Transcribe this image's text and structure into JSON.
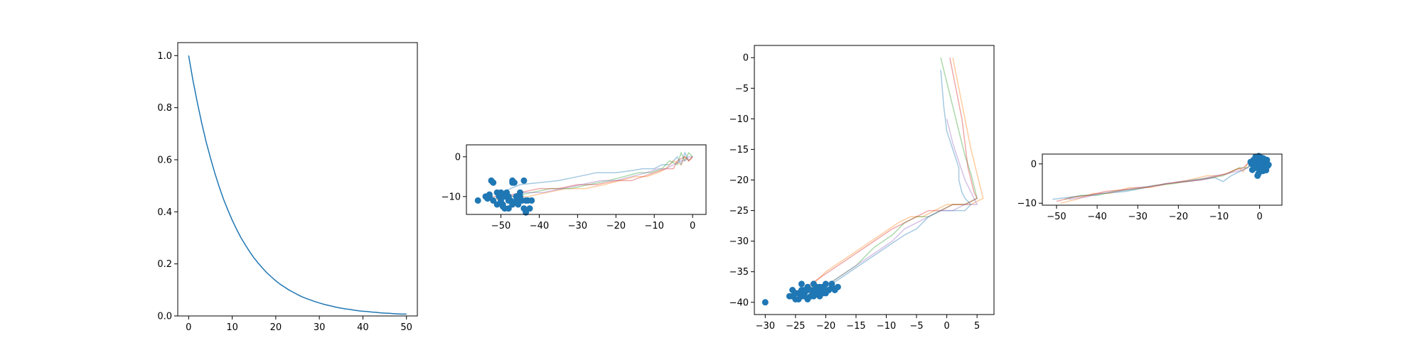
{
  "chart_data": [
    {
      "type": "line",
      "xlim": [
        -2.5,
        52.5
      ],
      "ylim": [
        0,
        1.05
      ],
      "xticks": [
        0,
        10,
        20,
        30,
        40,
        50
      ],
      "yticks": [
        0.0,
        0.2,
        0.4,
        0.6,
        0.8,
        1.0
      ],
      "xtick_labels": [
        "0",
        "10",
        "20",
        "30",
        "40",
        "50"
      ],
      "ytick_labels": [
        "0.0",
        "0.2",
        "0.4",
        "0.6",
        "0.8",
        "1.0"
      ],
      "grid": false,
      "series": [
        {
          "color": "#1f77b4",
          "x": [
            0,
            1,
            2,
            3,
            4,
            5,
            6,
            7,
            8,
            9,
            10,
            11,
            12,
            13,
            14,
            15,
            16,
            17,
            18,
            19,
            20,
            21,
            22,
            23,
            24,
            25,
            26,
            27,
            28,
            29,
            30,
            31,
            32,
            33,
            34,
            35,
            36,
            37,
            38,
            39,
            40,
            41,
            42,
            43,
            44,
            45,
            46,
            47,
            48,
            49,
            50
          ],
          "y": [
            1.0,
            0.905,
            0.819,
            0.741,
            0.67,
            0.607,
            0.549,
            0.497,
            0.449,
            0.407,
            0.368,
            0.333,
            0.301,
            0.273,
            0.247,
            0.223,
            0.202,
            0.183,
            0.165,
            0.15,
            0.135,
            0.122,
            0.111,
            0.1,
            0.091,
            0.082,
            0.074,
            0.067,
            0.061,
            0.055,
            0.05,
            0.045,
            0.041,
            0.037,
            0.033,
            0.03,
            0.027,
            0.025,
            0.022,
            0.02,
            0.018,
            0.017,
            0.015,
            0.014,
            0.012,
            0.011,
            0.01,
            0.009,
            0.008,
            0.007,
            0.007
          ]
        }
      ]
    },
    {
      "type": "line",
      "xlim": [
        -59,
        3.5
      ],
      "ylim": [
        -14.5,
        3
      ],
      "xticks": [
        -50,
        -40,
        -30,
        -20,
        -10,
        0
      ],
      "yticks": [
        -10,
        0
      ],
      "xtick_labels": [
        "−50",
        "−40",
        "−30",
        "−20",
        "−10",
        "0"
      ],
      "ytick_labels": [
        "−10",
        "0"
      ],
      "grid": false,
      "series": [
        {
          "color": "#1f77b4",
          "opacity": 0.4,
          "x": [
            0,
            -1,
            -2,
            -3,
            -4,
            -6,
            -8,
            -10,
            -13,
            -16,
            -20,
            -25,
            -30,
            -35,
            -40,
            -45,
            -50
          ],
          "y": [
            0,
            -1,
            1,
            -2,
            0,
            -2,
            -2,
            -3,
            -3,
            -3.5,
            -4,
            -4,
            -5,
            -6,
            -6.5,
            -7,
            -9
          ]
        },
        {
          "color": "#ff7f0e",
          "opacity": 0.4,
          "x": [
            0,
            -1,
            -2,
            -3,
            -5,
            -7,
            -9,
            -12,
            -15,
            -19,
            -23,
            -28,
            -33,
            -38,
            -43,
            -48,
            -52
          ],
          "y": [
            0,
            -1,
            0,
            -2,
            -1,
            -3,
            -4,
            -5,
            -5,
            -6,
            -7,
            -8,
            -8,
            -9,
            -10,
            -10,
            -11
          ]
        },
        {
          "color": "#2ca02c",
          "opacity": 0.4,
          "x": [
            0,
            -1,
            -2,
            -3,
            -4,
            -6,
            -8,
            -11,
            -14,
            -18,
            -22,
            -27,
            -32,
            -37,
            -42,
            -47,
            -51
          ],
          "y": [
            0,
            1,
            -1,
            1,
            -2,
            -1,
            -3,
            -4,
            -4,
            -5,
            -6,
            -7,
            -8,
            -8,
            -9,
            -10,
            -10
          ]
        },
        {
          "color": "#d62728",
          "opacity": 0.4,
          "x": [
            0,
            -1,
            -2,
            -4,
            -5,
            -7,
            -10,
            -13,
            -16,
            -20,
            -25,
            -30,
            -35,
            -40,
            -45,
            -49,
            -53
          ],
          "y": [
            0,
            -1,
            0,
            -1,
            -3,
            -3,
            -4,
            -5,
            -6,
            -6,
            -7,
            -7,
            -8,
            -8,
            -9,
            -10,
            -10
          ]
        },
        {
          "color": "#9467bd",
          "opacity": 0.4,
          "x": [
            0,
            -1,
            -2,
            -3,
            -5,
            -7,
            -9,
            -12,
            -16,
            -20,
            -24,
            -29,
            -34,
            -39,
            -44,
            -48,
            -50
          ],
          "y": [
            0,
            0,
            -1,
            -1,
            -2,
            -3,
            -3,
            -4,
            -5,
            -6,
            -6,
            -7,
            -8,
            -9,
            -9,
            -10,
            -11
          ]
        }
      ],
      "scatter": {
        "color": "#1f77b4",
        "x": [
          -56,
          -54,
          -53,
          -52.5,
          -52,
          -51,
          -50.5,
          -50,
          -49.5,
          -49,
          -48.5,
          -48,
          -47.5,
          -47,
          -46.5,
          -46,
          -45.5,
          -45,
          -44.5,
          -44,
          -43.5,
          -43,
          -42.5,
          -42,
          -53.5,
          -53,
          -52,
          -51,
          -50,
          -49,
          -48,
          -47,
          -46,
          -45,
          -44,
          -43.5,
          -48,
          -47,
          -49.5,
          -50.5
        ],
        "y": [
          -11,
          -10,
          -9.5,
          -6,
          -6.5,
          -9,
          -10,
          -11,
          -12,
          -13,
          -9,
          -10,
          -11,
          -6,
          -6.5,
          -10,
          -12,
          -9,
          -11,
          -13,
          -14,
          -11,
          -13,
          -11,
          -10.5,
          -10,
          -11,
          -12,
          -9,
          -10,
          -11,
          -12,
          -11,
          -10,
          -6,
          -11,
          -13,
          -6.5,
          -12.5,
          -9.5
        ]
      }
    },
    {
      "type": "line",
      "xlim": [
        -31.8,
        7.8
      ],
      "ylim": [
        -42,
        2
      ],
      "xticks": [
        -30,
        -25,
        -20,
        -15,
        -10,
        -5,
        0,
        5
      ],
      "yticks": [
        -40,
        -35,
        -30,
        -25,
        -20,
        -15,
        -10,
        -5,
        0
      ],
      "xtick_labels": [
        "−30",
        "−25",
        "−20",
        "−15",
        "−10",
        "−5",
        "0",
        "5"
      ],
      "ytick_labels": [
        "−40",
        "−35",
        "−30",
        "−25",
        "−20",
        "−15",
        "−10",
        "−5",
        "0"
      ],
      "grid": false,
      "series": [
        {
          "color": "#1f77b4",
          "opacity": 0.4,
          "x": [
            -1,
            -0.5,
            0,
            1,
            2,
            2,
            2.5,
            3,
            4,
            3,
            1,
            -1,
            -3,
            -5,
            -7,
            -10,
            -13,
            -16,
            -19,
            -22
          ],
          "y": [
            -2,
            -8,
            -12,
            -15,
            -18,
            -20,
            -22,
            -23,
            -24,
            -25,
            -25,
            -25,
            -26,
            -28,
            -29,
            -31,
            -33,
            -35,
            -37,
            -38
          ]
        },
        {
          "color": "#ff7f0e",
          "opacity": 0.4,
          "x": [
            1,
            2,
            3,
            4,
            5,
            5.5,
            6,
            4,
            2,
            0,
            -2,
            -4,
            -6,
            -8,
            -11,
            -14,
            -17,
            -20,
            -23
          ],
          "y": [
            0,
            -5,
            -10,
            -15,
            -19,
            -21,
            -23,
            -24,
            -24,
            -24,
            -25,
            -26,
            -26,
            -27,
            -29,
            -31,
            -33,
            -35,
            -38
          ]
        },
        {
          "color": "#2ca02c",
          "opacity": 0.4,
          "x": [
            -1,
            0,
            1,
            2,
            3,
            4,
            4.5,
            5,
            3,
            1,
            -1,
            -3,
            -5,
            -7,
            -9,
            -12,
            -15,
            -18,
            -21
          ],
          "y": [
            0,
            -4,
            -8,
            -12,
            -16,
            -19,
            -21,
            -23,
            -24,
            -24,
            -25,
            -26,
            -26,
            -27,
            -29,
            -31,
            -34,
            -36,
            -38
          ]
        },
        {
          "color": "#d62728",
          "opacity": 0.4,
          "x": [
            0.5,
            1.5,
            2.5,
            3,
            3.5,
            4,
            4.5,
            5,
            3,
            1,
            -1,
            -3,
            -5,
            -7,
            -9,
            -12,
            -15,
            -18,
            -21,
            -24
          ],
          "y": [
            0,
            -5,
            -10,
            -14,
            -18,
            -20,
            -22,
            -23,
            -24,
            -24,
            -25,
            -25,
            -26,
            -27,
            -28,
            -30,
            -32,
            -34,
            -36,
            -38
          ]
        },
        {
          "color": "#9467bd",
          "opacity": 0.4,
          "x": [
            0,
            1,
            2,
            3,
            4,
            4.5,
            5,
            3,
            1,
            -1,
            -3,
            -5,
            -7,
            -9,
            -12,
            -15,
            -18,
            -21
          ],
          "y": [
            -10,
            -14,
            -17,
            -20,
            -22,
            -23,
            -24,
            -24,
            -25,
            -25,
            -26,
            -27,
            -28,
            -30,
            -32,
            -34,
            -36,
            -38
          ]
        }
      ],
      "scatter": {
        "color": "#1f77b4",
        "x": [
          -30,
          -26,
          -25.5,
          -25,
          -24.5,
          -24,
          -23.5,
          -23,
          -22.5,
          -22,
          -21.5,
          -21,
          -20.5,
          -20,
          -19.5,
          -19,
          -18.5,
          -18,
          -25,
          -24,
          -23,
          -22,
          -21,
          -20,
          -24.5,
          -23.5,
          -22.5,
          -21.5,
          -20.5,
          -19.5,
          -23,
          -22,
          -21,
          -25.5,
          -24,
          -22,
          -20,
          -23.5,
          -21.5,
          -19
        ],
        "y": [
          -40,
          -39,
          -38,
          -39.5,
          -38.5,
          -39,
          -38,
          -37.5,
          -39,
          -38.5,
          -38,
          -39,
          -37.5,
          -38.5,
          -38,
          -37.5,
          -38,
          -37.5,
          -38.5,
          -37,
          -38,
          -39,
          -38,
          -37,
          -39.5,
          -38.5,
          -38,
          -37.5,
          -38.5,
          -38,
          -39.5,
          -38,
          -37.5,
          -39,
          -38,
          -37,
          -38,
          -39,
          -38.5,
          -37
        ]
      }
    },
    {
      "type": "line",
      "xlim": [
        -53.5,
        5.5
      ],
      "ylim": [
        -10.5,
        2.5
      ],
      "xticks": [
        -50,
        -40,
        -30,
        -20,
        -10,
        0
      ],
      "yticks": [
        -10,
        0
      ],
      "xtick_labels": [
        "−50",
        "−40",
        "−30",
        "−20",
        "−10",
        "0"
      ],
      "ytick_labels": [
        "−10",
        "0"
      ],
      "grid": false,
      "series": [
        {
          "color": "#1f77b4",
          "opacity": 0.4,
          "x": [
            -51,
            -47,
            -43,
            -38,
            -33,
            -28,
            -23,
            -18,
            -14,
            -11,
            -9,
            -7,
            -5,
            -3,
            -2,
            -1,
            0
          ],
          "y": [
            -9,
            -8.5,
            -8,
            -7.5,
            -7,
            -6,
            -5,
            -4.5,
            -4,
            -3.5,
            -4.5,
            -3,
            -2,
            -1,
            0,
            1,
            0
          ]
        },
        {
          "color": "#ff7f0e",
          "opacity": 0.4,
          "x": [
            -49,
            -45,
            -41,
            -37,
            -32,
            -27,
            -22,
            -17,
            -13,
            -10,
            -7,
            -5,
            -4,
            -3,
            -2,
            -1,
            1
          ],
          "y": [
            -10,
            -9,
            -7.5,
            -7.5,
            -6,
            -6,
            -5,
            -4,
            -3,
            -3,
            -2,
            -1,
            -2,
            0,
            1,
            0,
            2
          ]
        },
        {
          "color": "#2ca02c",
          "opacity": 0.4,
          "x": [
            -48,
            -44,
            -40,
            -36,
            -31,
            -26,
            -21,
            -16,
            -12,
            -9,
            -7,
            -5,
            -3,
            -2,
            -1,
            0
          ],
          "y": [
            -9,
            -8,
            -8,
            -7,
            -6.5,
            -5.5,
            -5,
            -4,
            -3.5,
            -3,
            -2,
            -1,
            -1,
            0,
            1,
            0
          ]
        },
        {
          "color": "#d62728",
          "opacity": 0.4,
          "x": [
            -50,
            -46,
            -42,
            -38,
            -33,
            -28,
            -23,
            -18,
            -14,
            -10,
            -8,
            -6,
            -4,
            -3,
            -1,
            0
          ],
          "y": [
            -9.5,
            -8.5,
            -8,
            -7,
            -6.5,
            -6,
            -5,
            -4.5,
            -4,
            -3,
            -2.5,
            -1.5,
            -1,
            0,
            0,
            1
          ]
        },
        {
          "color": "#9467bd",
          "opacity": 0.4,
          "x": [
            -47,
            -43,
            -39,
            -35,
            -30,
            -25,
            -20,
            -15,
            -11,
            -8,
            -6,
            -4,
            -3,
            -2,
            -1,
            0
          ],
          "y": [
            -9,
            -8.5,
            -7.5,
            -7,
            -6,
            -5.5,
            -4.5,
            -4,
            -3,
            -2.5,
            -2,
            -1.5,
            -1,
            0,
            0.5,
            1
          ]
        }
      ],
      "scatter": {
        "color": "#1f77b4",
        "x": [
          -2,
          -1.5,
          -1,
          -0.5,
          0,
          0.5,
          1,
          1.5,
          2,
          -1.8,
          -0.8,
          0.2,
          1.2,
          -1.2,
          -0.2,
          0.8,
          1.8,
          -0.5,
          -2.2,
          0.6,
          1.4,
          -1,
          0,
          1,
          2.2,
          -1.5,
          0.4,
          1.6,
          -0.3,
          0.9
        ],
        "y": [
          0,
          1,
          -1,
          0.5,
          -2,
          1.5,
          -1,
          0,
          -0.5,
          -1.5,
          0.8,
          -0.8,
          1.2,
          -0.3,
          2,
          -1.8,
          1,
          -3,
          0.5,
          0.2,
          -1.2,
          1.8,
          -0.6,
          0.6,
          -0.2,
          0.3,
          1.6,
          -1.6,
          -2.5,
          1.4
        ]
      }
    }
  ]
}
